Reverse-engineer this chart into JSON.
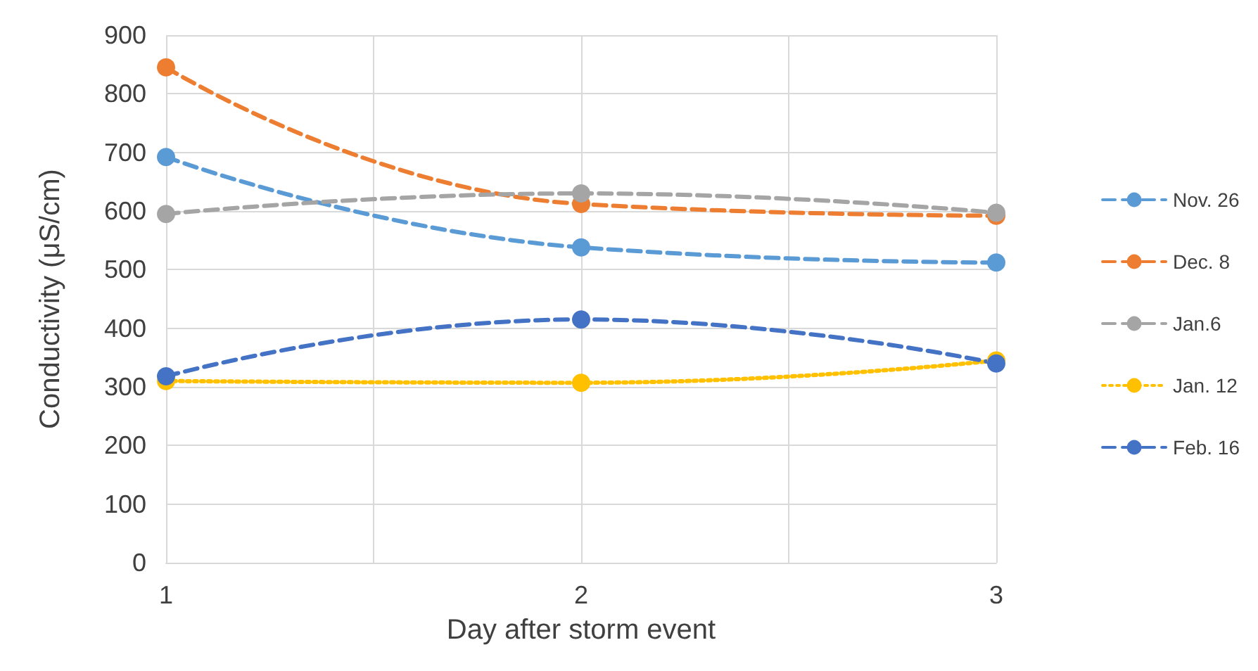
{
  "chart_data": {
    "type": "line",
    "xlabel": "Day after storm event",
    "ylabel": "Conductivity (μS/cm)",
    "x": [
      1,
      2,
      3
    ],
    "xlim": [
      1,
      3
    ],
    "xticks": [
      1,
      2,
      3
    ],
    "ylim": [
      0,
      900
    ],
    "yticks": [
      0,
      100,
      200,
      300,
      400,
      500,
      600,
      700,
      800,
      900
    ],
    "grid": true,
    "legend": "right",
    "marker": "circle",
    "series": [
      {
        "name": "Nov. 26",
        "color": "#5b9bd5",
        "line_style": "dashed",
        "values": [
          692,
          538,
          512
        ]
      },
      {
        "name": "Dec. 8",
        "color": "#ed7d31",
        "line_style": "dashed",
        "values": [
          845,
          612,
          592
        ]
      },
      {
        "name": "Jan.6",
        "color": "#a5a5a5",
        "line_style": "dashed",
        "values": [
          595,
          630,
          597
        ]
      },
      {
        "name": "Jan. 12",
        "color": "#ffc000",
        "line_style": "dotted",
        "values": [
          310,
          307,
          345
        ]
      },
      {
        "name": "Feb. 16",
        "color": "#4472c4",
        "line_style": "dashed",
        "values": [
          318,
          415,
          340
        ]
      }
    ]
  }
}
